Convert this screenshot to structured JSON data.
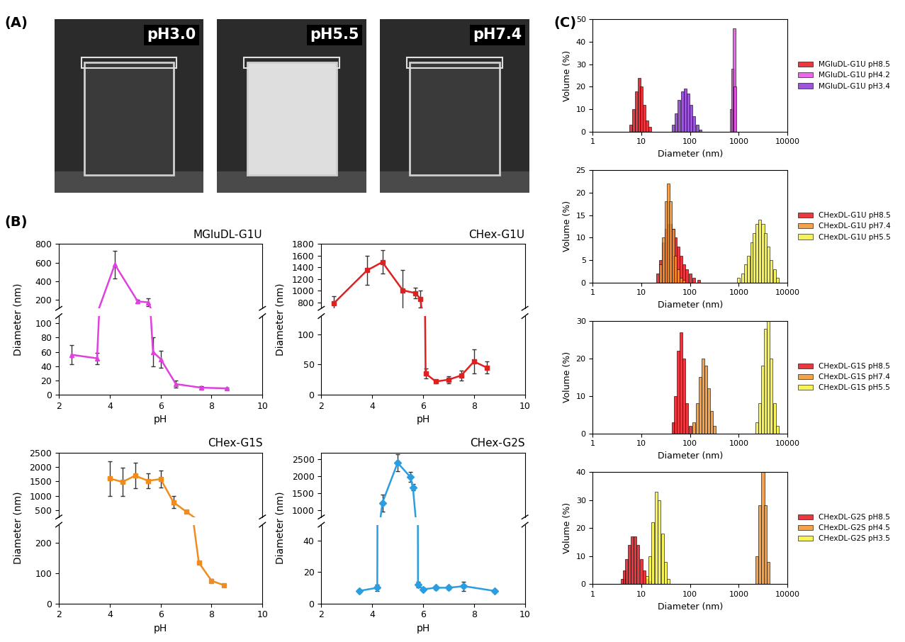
{
  "panel_labels": [
    "(A)",
    "(B)",
    "(C)"
  ],
  "photos": {
    "labels": [
      "pH3.0",
      "pH5.5",
      "pH7.4"
    ]
  },
  "chart_data": [
    {
      "type": "line",
      "title": "MGluDL-G1U",
      "xlabel": "pH",
      "ylabel": "Diameter (nm)",
      "color": "#e040e0",
      "marker": "triangle",
      "x": [
        2.5,
        3.5,
        4.2,
        5.1,
        5.5,
        5.7,
        6.0,
        6.6,
        7.6,
        8.6
      ],
      "values": [
        56,
        51,
        580,
        185,
        175,
        60,
        50,
        15,
        10,
        9
      ],
      "errors": [
        13,
        8,
        150,
        20,
        40,
        20,
        12,
        5,
        2,
        1
      ],
      "xlim": [
        2,
        10
      ],
      "xticks": [
        2,
        4,
        6,
        8,
        10
      ],
      "ylim": [
        [
          0,
          110
        ],
        [
          110,
          800
        ]
      ],
      "yticks": [
        [
          0,
          20,
          40,
          60,
          80,
          100
        ],
        [
          200,
          400,
          600,
          800
        ]
      ]
    },
    {
      "type": "line",
      "title": "CHex-G1U",
      "xlabel": "pH",
      "ylabel": "Diameter (nm)",
      "color": "#e0201e",
      "marker": "square",
      "x": [
        2.5,
        3.8,
        4.4,
        5.2,
        5.7,
        5.9,
        6.1,
        6.5,
        7.0,
        7.5,
        8.0,
        8.5
      ],
      "values": [
        790,
        1350,
        1490,
        1010,
        960,
        860,
        35,
        22,
        25,
        32,
        55,
        45
      ],
      "errors": [
        120,
        250,
        200,
        350,
        90,
        150,
        8,
        3,
        6,
        8,
        20,
        10
      ],
      "xlim": [
        2,
        10
      ],
      "xticks": [
        2,
        4,
        6,
        8,
        10
      ],
      "ylim": [
        [
          0,
          130
        ],
        [
          700,
          1800
        ]
      ],
      "yticks": [
        [
          0,
          50,
          100
        ],
        [
          800,
          1000,
          1200,
          1400,
          1600,
          1800
        ]
      ]
    },
    {
      "type": "line",
      "title": "CHex-G1S",
      "xlabel": "pH",
      "ylabel": "Diameter (nm)",
      "color": "#f08c1e",
      "marker": "square",
      "x": [
        4.0,
        4.5,
        5.0,
        5.5,
        6.0,
        6.5,
        7.0,
        7.5,
        8.0,
        8.5
      ],
      "values": [
        1600,
        1480,
        1700,
        1520,
        1580,
        780,
        450,
        135,
        75,
        60
      ],
      "errors": [
        600,
        500,
        450,
        250,
        300,
        200,
        30,
        5,
        5,
        5
      ],
      "xlim": [
        2,
        10
      ],
      "xticks": [
        2,
        4,
        6,
        8,
        10
      ],
      "ylim": [
        [
          0,
          260
        ],
        [
          260,
          2500
        ]
      ],
      "yticks": [
        [
          0,
          100,
          200
        ],
        [
          500,
          1000,
          1500,
          2000,
          2500
        ]
      ]
    },
    {
      "type": "line",
      "title": "CHex-G2S",
      "xlabel": "pH",
      "ylabel": "Diameter (nm)",
      "color": "#2a9ee0",
      "marker": "diamond",
      "x": [
        3.5,
        4.2,
        4.4,
        5.0,
        5.5,
        5.6,
        5.8,
        6.0,
        6.5,
        7.0,
        7.6,
        8.8
      ],
      "values": [
        8,
        10,
        1220,
        2400,
        1980,
        1680,
        12,
        9,
        10,
        10,
        11,
        8
      ],
      "errors": [
        1,
        2,
        250,
        250,
        150,
        100,
        2,
        1,
        1,
        1,
        3,
        1
      ],
      "xlim": [
        2,
        10
      ],
      "xticks": [
        2,
        4,
        6,
        8,
        10
      ],
      "ylim": [
        [
          0,
          50
        ],
        [
          800,
          2700
        ]
      ],
      "yticks": [
        [
          0,
          20,
          40
        ],
        [
          1000,
          1500,
          2000,
          2500
        ]
      ]
    },
    {
      "type": "bar",
      "xlabel": "Diameter (nm)",
      "ylabel": "Volume (%)",
      "log": "x",
      "legend": "right",
      "xlim": [
        1,
        10000
      ],
      "xticks": [
        1,
        10,
        100,
        1000,
        10000
      ],
      "ylim": [
        0,
        50
      ],
      "yticks": [
        0,
        10,
        20,
        30,
        40,
        50
      ],
      "series": [
        {
          "name": "MGluDL-G1U pH8.5",
          "color": "#e8141e",
          "x": [
            6,
            7,
            8,
            9,
            10,
            11.5,
            13,
            15
          ],
          "values": [
            3,
            10,
            18,
            24,
            20,
            12,
            5,
            2
          ]
        },
        {
          "name": "MGluDL-G1U pH4.2",
          "color": "#e84ce8",
          "x": [
            700,
            750,
            800,
            850
          ],
          "values": [
            10,
            28,
            46,
            20
          ]
        },
        {
          "name": "MGluDL-G1U pH3.4",
          "color": "#8a3ad0",
          "x": [
            45,
            52,
            60,
            70,
            80,
            92,
            105,
            120,
            140,
            160
          ],
          "values": [
            3,
            8,
            14,
            18,
            19,
            17,
            12,
            7,
            3,
            1
          ]
        }
      ]
    },
    {
      "type": "bar",
      "xlabel": "Diameter (nm)",
      "ylabel": "Volume (%)",
      "log": "x",
      "legend": "right",
      "xlim": [
        1,
        10000
      ],
      "xticks": [
        1,
        10,
        100,
        1000,
        10000
      ],
      "ylim": [
        0,
        25
      ],
      "yticks": [
        0,
        5,
        10,
        15,
        20,
        25
      ],
      "series": [
        {
          "name": "CHexDL-G1U pH8.5",
          "color": "#e8141e",
          "x": [
            22,
            25,
            28,
            32,
            36,
            40,
            45,
            50,
            57,
            65,
            75,
            85,
            100,
            120,
            150
          ],
          "values": [
            2,
            5,
            9,
            12,
            13,
            13,
            12,
            10,
            8,
            6,
            4,
            3,
            2,
            1,
            0.5
          ]
        },
        {
          "name": "CHexDL-G1U pH7.4",
          "color": "#f5922a",
          "x": [
            25,
            28,
            32,
            36,
            40,
            45,
            50,
            57,
            65,
            75
          ],
          "values": [
            4,
            10,
            18,
            22,
            18,
            12,
            6,
            3,
            1,
            0.5
          ]
        },
        {
          "name": "CHexDL-G1U pH5.5",
          "color": "#f5f03c",
          "x": [
            1000,
            1200,
            1400,
            1600,
            1850,
            2100,
            2400,
            2750,
            3150,
            3600,
            4100,
            4700,
            5400,
            6200
          ],
          "values": [
            1,
            2,
            4,
            6,
            9,
            11,
            13,
            14,
            13,
            11,
            8,
            5,
            3,
            1
          ]
        }
      ]
    },
    {
      "type": "bar",
      "xlabel": "Diameter (nm)",
      "ylabel": "Volume (%)",
      "log": "x",
      "legend": "right",
      "xlim": [
        1,
        10000
      ],
      "xticks": [
        1,
        10,
        100,
        1000,
        10000
      ],
      "ylim": [
        0,
        30
      ],
      "yticks": [
        0,
        10,
        20,
        30
      ],
      "series": [
        {
          "name": "CHexDL-G1S pH8.5",
          "color": "#e8141e",
          "x": [
            45,
            50,
            57,
            65,
            75,
            85,
            100
          ],
          "values": [
            3,
            10,
            22,
            27,
            20,
            8,
            2
          ]
        },
        {
          "name": "CHexDL-G1S pH7.4",
          "color": "#f5922a",
          "x": [
            120,
            140,
            160,
            185,
            210,
            240,
            275,
            320
          ],
          "values": [
            3,
            8,
            15,
            20,
            18,
            12,
            6,
            2
          ]
        },
        {
          "name": "CHexDL-G1S pH5.5",
          "color": "#f5f03c",
          "x": [
            2400,
            2750,
            3150,
            3600,
            4100,
            4700,
            5400,
            6200
          ],
          "values": [
            3,
            8,
            18,
            28,
            30,
            20,
            8,
            2
          ]
        }
      ]
    },
    {
      "type": "bar",
      "xlabel": "Diameter (nm)",
      "ylabel": "Volume (%)",
      "log": "x",
      "legend": "right",
      "xlim": [
        1,
        10000
      ],
      "xticks": [
        1,
        10,
        100,
        1000,
        10000
      ],
      "ylim": [
        0,
        40
      ],
      "yticks": [
        0,
        10,
        20,
        30,
        40
      ],
      "series": [
        {
          "name": "CHexDL-G2S pH8.5",
          "color": "#e8141e",
          "x": [
            4,
            4.5,
            5,
            5.7,
            6.5,
            7.5,
            8.5,
            10,
            11.5,
            13,
            15
          ],
          "values": [
            2,
            5,
            9,
            14,
            17,
            17,
            14,
            9,
            5,
            2,
            1
          ]
        },
        {
          "name": "CHexDL-G2S pH4.5",
          "color": "#f5922a",
          "x": [
            2400,
            2750,
            3150,
            3600,
            4100
          ],
          "values": [
            10,
            28,
            40,
            28,
            8
          ]
        },
        {
          "name": "CHexDL-G2S pH3.5",
          "color": "#f5f03c",
          "x": [
            13,
            15,
            17,
            20,
            23,
            27,
            31,
            36
          ],
          "values": [
            3,
            10,
            22,
            33,
            30,
            18,
            8,
            2
          ]
        }
      ]
    }
  ]
}
